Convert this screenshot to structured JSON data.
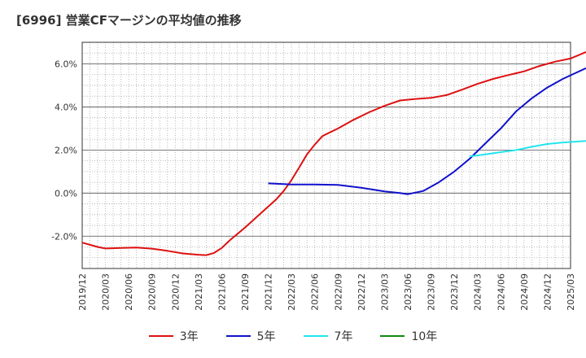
{
  "title": "[6996]  営業CFマージンの平均値の推移",
  "chart_data": {
    "type": "line",
    "title": "[6996]  営業CFマージンの平均値の推移",
    "xlabel": "",
    "ylabel": "",
    "x_ticks": [
      "2019/12",
      "2020/03",
      "2020/06",
      "2020/09",
      "2020/12",
      "2021/03",
      "2021/06",
      "2021/09",
      "2021/12",
      "2022/03",
      "2022/06",
      "2022/09",
      "2022/12",
      "2023/03",
      "2023/06",
      "2023/09",
      "2023/12",
      "2024/03",
      "2024/06",
      "2024/09",
      "2024/12",
      "2025/03"
    ],
    "y_ticks": [
      -2.0,
      0.0,
      2.0,
      4.0,
      6.0
    ],
    "y_tick_labels": [
      "-2.0%",
      "0.0%",
      "2.0%",
      "4.0%",
      "6.0%"
    ],
    "ylim": [
      -3.5,
      7.0
    ],
    "grid": true,
    "legend_position": "bottom",
    "series": [
      {
        "name": "3年",
        "color": "#dd1111",
        "points": [
          [
            "2019/12",
            -2.3
          ],
          [
            "2020/02",
            -2.5
          ],
          [
            "2020/03",
            -2.57
          ],
          [
            "2020/05",
            -2.55
          ],
          [
            "2020/07",
            -2.53
          ],
          [
            "2020/09",
            -2.58
          ],
          [
            "2020/11",
            -2.68
          ],
          [
            "2021/01",
            -2.8
          ],
          [
            "2021/03",
            -2.86
          ],
          [
            "2021/04",
            -2.88
          ],
          [
            "2021/05",
            -2.78
          ],
          [
            "2021/06",
            -2.55
          ],
          [
            "2021/07",
            -2.2
          ],
          [
            "2021/09",
            -1.6
          ],
          [
            "2021/11",
            -0.95
          ],
          [
            "2022/01",
            -0.3
          ],
          [
            "2022/02",
            0.1
          ],
          [
            "2022/03",
            0.6
          ],
          [
            "2022/04",
            1.2
          ],
          [
            "2022/05",
            1.8
          ],
          [
            "2022/06",
            2.25
          ],
          [
            "2022/07",
            2.65
          ],
          [
            "2022/09",
            3.0
          ],
          [
            "2022/11",
            3.4
          ],
          [
            "2023/01",
            3.75
          ],
          [
            "2023/03",
            4.05
          ],
          [
            "2023/05",
            4.3
          ],
          [
            "2023/07",
            4.37
          ],
          [
            "2023/09",
            4.42
          ],
          [
            "2023/11",
            4.55
          ],
          [
            "2024/01",
            4.8
          ],
          [
            "2024/03",
            5.07
          ],
          [
            "2024/05",
            5.3
          ],
          [
            "2024/07",
            5.48
          ],
          [
            "2024/09",
            5.65
          ],
          [
            "2024/11",
            5.9
          ],
          [
            "2025/01",
            6.1
          ],
          [
            "2025/03",
            6.25
          ],
          [
            "2025/05",
            6.55
          ]
        ]
      },
      {
        "name": "5年",
        "color": "#1111cc",
        "points": [
          [
            "2021/12",
            0.45
          ],
          [
            "2022/02",
            0.42
          ],
          [
            "2022/03",
            0.4
          ],
          [
            "2022/06",
            0.4
          ],
          [
            "2022/09",
            0.38
          ],
          [
            "2022/12",
            0.25
          ],
          [
            "2023/03",
            0.08
          ],
          [
            "2023/05",
            0.0
          ],
          [
            "2023/06",
            -0.05
          ],
          [
            "2023/08",
            0.1
          ],
          [
            "2023/10",
            0.5
          ],
          [
            "2023/12",
            1.0
          ],
          [
            "2024/02",
            1.6
          ],
          [
            "2024/04",
            2.3
          ],
          [
            "2024/06",
            3.0
          ],
          [
            "2024/08",
            3.8
          ],
          [
            "2024/10",
            4.4
          ],
          [
            "2024/12",
            4.9
          ],
          [
            "2025/02",
            5.3
          ],
          [
            "2025/05",
            5.8
          ]
        ]
      },
      {
        "name": "7年",
        "color": "#22e5ee",
        "points": [
          [
            "2024/02",
            1.7
          ],
          [
            "2024/04",
            1.8
          ],
          [
            "2024/06",
            1.9
          ],
          [
            "2024/08",
            2.0
          ],
          [
            "2024/10",
            2.15
          ],
          [
            "2024/12",
            2.28
          ],
          [
            "2025/02",
            2.35
          ],
          [
            "2025/05",
            2.42
          ]
        ]
      },
      {
        "name": "10年",
        "color": "#118811",
        "points": []
      }
    ]
  }
}
